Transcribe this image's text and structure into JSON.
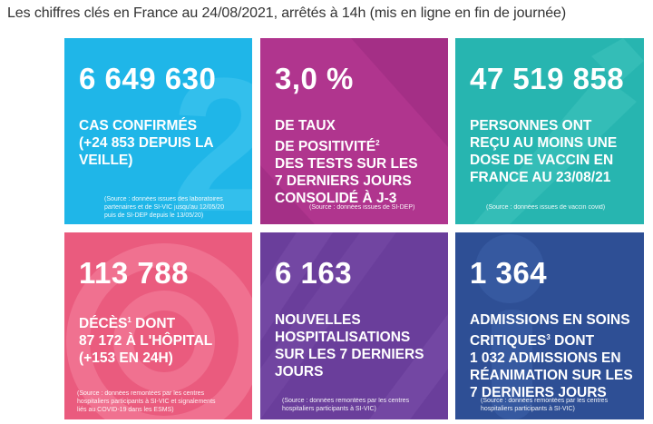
{
  "headline": "Les chiffres clés en France au 24/08/2021, arrêtés à 14h (mis en ligne en fin de journée)",
  "cards": [
    {
      "value": "6 649 630",
      "text": "CAS CONFIRMÉS\n(+24 853 DEPUIS LA\nVEILLE)",
      "source": "(Source : données issues des laboratoires\npartenaires et de SI-VIC jusqu'au 12/05/20\npuis de SI-DEP depuis le 13/05/20)",
      "color": "#1fb6e8"
    },
    {
      "value": "3,0 %",
      "text_lines": [
        "DE TAUX",
        "DE POSITIVITÉ",
        "DES TESTS SUR LES",
        "7 DERNIERS JOURS",
        "CONSOLIDÉ À J-3"
      ],
      "source": "(Source : données issues de SI-DEP)",
      "color": "#b0358e"
    },
    {
      "value": "47 519 858",
      "text": "PERSONNES ONT\nREÇU AU MOINS UNE\nDOSE DE VACCIN EN\nFRANCE AU 23/08/21",
      "source": "(Source : données issues de vaccin covid)",
      "color": "#27b5b0"
    },
    {
      "value": "113 788",
      "text_lines": [
        "DÉCÈS",
        " DONT",
        "87 172 À L'HÔPITAL",
        "(+153 EN 24H)"
      ],
      "source": "(Source : données remontées par les centres\nhospitaliers participants à SI-VIC et signalements\nliés au COVID-19 dans les ESMS)",
      "color": "#ea5b7e"
    },
    {
      "value": "6 163",
      "text": "NOUVELLES\nHOSPITALISATIONS\nSUR LES 7 DERNIERS\nJOURS",
      "source": "(Source : données remontées par les centres\nhospitaliers participants à SI-VIC)",
      "color": "#6a3e9b"
    },
    {
      "value": "1 364",
      "text_lines": [
        "ADMISSIONS EN SOINS",
        "CRITIQUES",
        " DONT",
        "1 032 ADMISSIONS EN",
        "RÉANIMATION SUR LES",
        "7 DERNIERS JOURS"
      ],
      "source": "(Source : données remontées par les centres\nhospitaliers participants à SI-VIC)",
      "color": "#2e4f95"
    }
  ],
  "footnotes": {
    "positivite": "2",
    "deces": "1",
    "critiques": "3"
  }
}
